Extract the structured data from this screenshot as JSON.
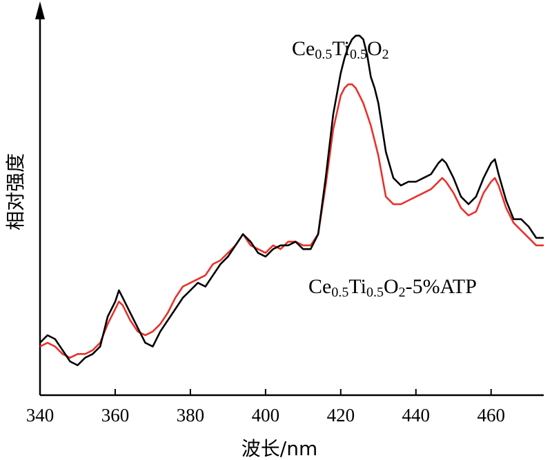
{
  "chart_data": {
    "type": "line",
    "xlabel": "波长/nm",
    "ylabel": "相对强度",
    "xlim": [
      340,
      474
    ],
    "ylim": [
      0,
      100
    ],
    "x_ticks": [
      "340",
      "360",
      "380",
      "400",
      "420",
      "440",
      "460"
    ],
    "grid": false,
    "legend": "none",
    "annotations": [
      {
        "series": "Ce0.5Ti0.5O2",
        "parts": [
          {
            "t": "Ce",
            "sub": false
          },
          {
            "t": "0.5",
            "sub": true
          },
          {
            "t": "Ti",
            "sub": false
          },
          {
            "t": "0.5",
            "sub": true
          },
          {
            "t": "O",
            "sub": false
          },
          {
            "t": "2",
            "sub": true
          }
        ]
      },
      {
        "series": "Ce0.5Ti0.5O2-5%ATP",
        "parts": [
          {
            "t": "Ce",
            "sub": false
          },
          {
            "t": "0.5",
            "sub": true
          },
          {
            "t": "Ti",
            "sub": false
          },
          {
            "t": "0.5",
            "sub": true
          },
          {
            "t": "O",
            "sub": false
          },
          {
            "t": "2",
            "sub": true
          },
          {
            "t": "-5%ATP",
            "sub": false
          }
        ]
      }
    ],
    "series": [
      {
        "name": "Ce0.5Ti0.5O2",
        "color": "#000000",
        "x": [
          340,
          342,
          344,
          346,
          348,
          350,
          352,
          354,
          356,
          358,
          360,
          361,
          362,
          364,
          366,
          368,
          370,
          372,
          374,
          376,
          378,
          380,
          382,
          384,
          386,
          388,
          390,
          392,
          394,
          396,
          398,
          400,
          402,
          404,
          406,
          408,
          410,
          412,
          414,
          416,
          418,
          420,
          421,
          422,
          423,
          424,
          425,
          426,
          427,
          428,
          429,
          430,
          432,
          434,
          436,
          438,
          440,
          442,
          444,
          446,
          447,
          448,
          450,
          452,
          454,
          456,
          458,
          460,
          461,
          462,
          464,
          466,
          468,
          470,
          472,
          474
        ],
        "y": [
          14,
          16,
          15,
          12,
          9,
          8,
          10,
          11,
          13,
          21,
          25,
          28,
          26,
          22,
          18,
          14,
          13,
          17,
          20,
          23,
          26,
          28,
          30,
          29,
          32,
          35,
          37,
          40,
          43,
          41,
          38,
          37,
          39,
          40,
          40,
          41,
          39,
          39,
          43,
          58,
          75,
          86,
          90,
          93,
          95,
          96,
          96,
          95,
          91,
          85,
          82,
          78,
          65,
          58,
          56,
          57,
          57,
          58,
          59,
          62,
          63,
          62,
          58,
          53,
          51,
          53,
          58,
          62,
          63,
          59,
          52,
          47,
          47,
          45,
          42,
          42
        ]
      },
      {
        "name": "Ce0.5Ti0.5O2-5%ATP",
        "color": "#e8312a",
        "x": [
          340,
          342,
          344,
          346,
          348,
          350,
          352,
          354,
          356,
          358,
          360,
          361,
          362,
          364,
          366,
          368,
          370,
          372,
          374,
          376,
          378,
          380,
          382,
          384,
          386,
          388,
          390,
          392,
          394,
          396,
          398,
          400,
          402,
          404,
          406,
          408,
          410,
          412,
          414,
          416,
          418,
          420,
          421,
          422,
          423,
          424,
          425,
          426,
          427,
          428,
          429,
          430,
          432,
          434,
          436,
          438,
          440,
          442,
          444,
          446,
          447,
          448,
          450,
          452,
          454,
          456,
          458,
          460,
          461,
          462,
          464,
          466,
          468,
          470,
          472,
          474
        ],
        "y": [
          13,
          14,
          13,
          11,
          10,
          11,
          11,
          12,
          14,
          19,
          23,
          25,
          24,
          20,
          17,
          16,
          17,
          19,
          22,
          26,
          29,
          30,
          31,
          32,
          35,
          36,
          38,
          40,
          43,
          40,
          39,
          38,
          40,
          39,
          41,
          41,
          40,
          40,
          43,
          56,
          71,
          80,
          82,
          83,
          83,
          82,
          80,
          78,
          75,
          72,
          68,
          64,
          53,
          51,
          51,
          52,
          53,
          54,
          55,
          57,
          58,
          57,
          54,
          50,
          48,
          49,
          54,
          57,
          58,
          56,
          50,
          46,
          44,
          42,
          40,
          40
        ]
      }
    ]
  }
}
